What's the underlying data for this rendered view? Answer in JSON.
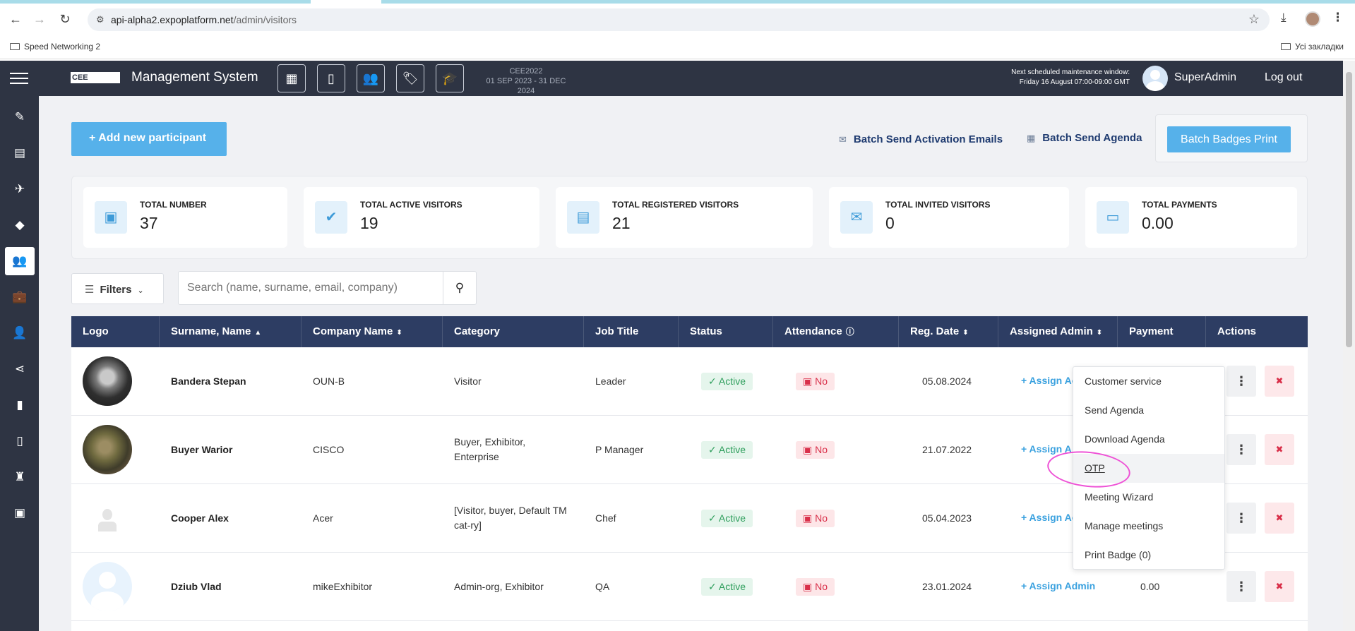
{
  "browser": {
    "url_host": "api-alpha2.expoplatform.net",
    "url_path": "/admin/visitors",
    "bookmark_left": "Speed Networking 2",
    "bookmark_right": "Усі закладки"
  },
  "header": {
    "logo_text": "CEE",
    "title": "Management System",
    "event_code": "CEE2022",
    "event_dates": "01 SEP 2023 - 31 DEC 2024",
    "maintenance_line1": "Next scheduled maintenance window:",
    "maintenance_line2": "Friday 16 August 07:00-09:00 GMT",
    "user_name": "SuperAdmin",
    "logout_label": "Log out",
    "icons": [
      "calendar-icon",
      "mobile-icon",
      "users-icon",
      "tag-icon",
      "graduation-cap-icon"
    ]
  },
  "sidebar": {
    "items": [
      "pencil-icon",
      "list-icon",
      "plane-icon",
      "diamond-icon",
      "visitors-icon",
      "briefcase-icon",
      "people-icon",
      "share-icon",
      "chart-icon",
      "mobile-icon",
      "lamp-icon",
      "file-icon"
    ],
    "active_index": 4
  },
  "toolbar": {
    "add_label": "+ Add new participant",
    "batch_activation": "Batch Send Activation Emails",
    "batch_agenda": "Batch Send Agenda",
    "batch_badges": "Batch Badges Print"
  },
  "stats": [
    {
      "label": "TOTAL NUMBER",
      "value": "37",
      "icon": "id-card-icon"
    },
    {
      "label": "TOTAL ACTIVE VISITORS",
      "value": "19",
      "icon": "check-circle-icon"
    },
    {
      "label": "TOTAL REGISTERED VISITORS",
      "value": "21",
      "icon": "badge-icon"
    },
    {
      "label": "TOTAL INVITED VISITORS",
      "value": "0",
      "icon": "mail-icon"
    },
    {
      "label": "TOTAL PAYMENTS",
      "value": "0.00",
      "icon": "money-icon"
    }
  ],
  "filters": {
    "label": "Filters",
    "search_placeholder": "Search (name, surname, email, company)"
  },
  "table": {
    "columns": [
      "Logo",
      "Surname, Name",
      "Company Name",
      "Category",
      "Job Title",
      "Status",
      "Attendance",
      "Reg. Date",
      "Assigned Admin",
      "Payment",
      "Actions"
    ],
    "rows": [
      {
        "name": "Bandera Stepan",
        "company": "OUN-B",
        "category": "Visitor",
        "job": "Leader",
        "status": "Active",
        "attendance": "No",
        "reg_date": "05.08.2024",
        "assign": "+ Assign Ac",
        "payment": ""
      },
      {
        "name": "Buyer Warior",
        "company": "CISCO",
        "category": "Buyer, Exhibitor, Enterprise",
        "job": "P Manager",
        "status": "Active",
        "attendance": "No",
        "reg_date": "21.07.2022",
        "assign": "+ Assign A",
        "payment": ""
      },
      {
        "name": "Cooper Alex",
        "company": "Acer",
        "category": "[Visitor, buyer, Default TM cat-ry]",
        "job": "Chef",
        "status": "Active",
        "attendance": "No",
        "reg_date": "05.04.2023",
        "assign": "+ Assign Ac",
        "payment": ""
      },
      {
        "name": "Dziub Vlad",
        "company": "mikeExhibitor",
        "category": "Admin-org, Exhibitor",
        "job": "QA",
        "status": "Active",
        "attendance": "No",
        "reg_date": "23.01.2024",
        "assign": "+ Assign Admin",
        "payment": "0.00"
      }
    ]
  },
  "dropdown": {
    "items": [
      "Customer service",
      "Send Agenda",
      "Download Agenda",
      "OTP",
      "Meeting Wizard",
      "Manage meetings",
      "Print Badge (0)"
    ],
    "hover_index": 3
  }
}
